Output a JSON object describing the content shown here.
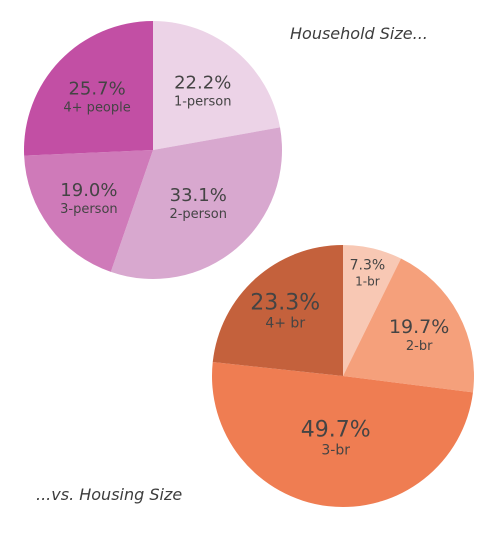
{
  "captions": {
    "household": "Household Size...",
    "housing": "...vs. Housing Size"
  },
  "chart_data": [
    {
      "type": "pie",
      "title": "Household Size...",
      "slices": [
        {
          "label": "1-person",
          "value": 22.2,
          "display": "22.2%",
          "color": "#ecd3e7"
        },
        {
          "label": "2-person",
          "value": 33.1,
          "display": "33.1%",
          "color": "#d8a8cf"
        },
        {
          "label": "3-person",
          "value": 19.0,
          "display": "19.0%",
          "color": "#cf7ab9"
        },
        {
          "label": "4+ people",
          "value": 25.7,
          "display": "25.7%",
          "color": "#c24fa4"
        }
      ]
    },
    {
      "type": "pie",
      "title": "...vs. Housing Size",
      "slices": [
        {
          "label": "1-br",
          "value": 7.3,
          "display": "7.3%",
          "color": "#f8c8b4"
        },
        {
          "label": "2-br",
          "value": 19.7,
          "display": "19.7%",
          "color": "#f5a07b"
        },
        {
          "label": "3-br",
          "value": 49.7,
          "display": "49.7%",
          "color": "#ef7d52"
        },
        {
          "label": "4+ br",
          "value": 23.3,
          "display": "23.3%",
          "color": "#c4613c"
        }
      ]
    }
  ]
}
